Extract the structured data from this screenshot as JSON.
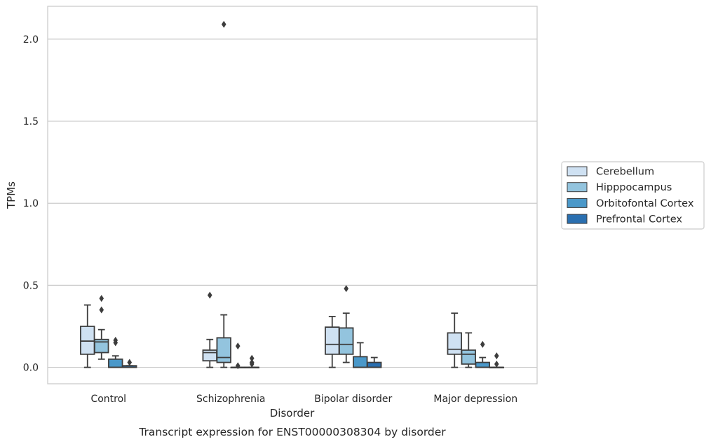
{
  "chart_data": {
    "type": "box",
    "caption": "Transcript expression for ENST00000308304 by disorder",
    "xlabel": "Disorder",
    "ylabel": "TPMs",
    "ylim": [
      -0.1,
      2.2
    ],
    "yticks": [
      "0.0",
      "0.5",
      "1.0",
      "1.5",
      "2.0"
    ],
    "ytick_values": [
      0.0,
      0.5,
      1.0,
      1.5,
      2.0
    ],
    "grid": "horizontal",
    "legend_position": "right",
    "categories": [
      "Control",
      "Schizophrenia",
      "Bipolar disorder",
      "Major depression"
    ],
    "series": [
      {
        "name": "Cerebellum",
        "color": "#cfe1f2",
        "boxes": [
          {
            "whisker_low": 0.0,
            "q1": 0.08,
            "median": 0.16,
            "q3": 0.25,
            "whisker_high": 0.38,
            "outliers": []
          },
          {
            "whisker_low": 0.0,
            "q1": 0.04,
            "median": 0.09,
            "q3": 0.105,
            "whisker_high": 0.17,
            "outliers": [
              0.44
            ]
          },
          {
            "whisker_low": 0.0,
            "q1": 0.08,
            "median": 0.14,
            "q3": 0.245,
            "whisker_high": 0.31,
            "outliers": []
          },
          {
            "whisker_low": 0.0,
            "q1": 0.08,
            "median": 0.11,
            "q3": 0.21,
            "whisker_high": 0.33,
            "outliers": []
          }
        ]
      },
      {
        "name": "Hipppocampus",
        "color": "#93c4de",
        "boxes": [
          {
            "whisker_low": 0.05,
            "q1": 0.09,
            "median": 0.155,
            "q3": 0.17,
            "whisker_high": 0.23,
            "outliers": [
              0.35,
              0.42
            ]
          },
          {
            "whisker_low": 0.0,
            "q1": 0.03,
            "median": 0.06,
            "q3": 0.18,
            "whisker_high": 0.32,
            "outliers": [
              2.09
            ]
          },
          {
            "whisker_low": 0.03,
            "q1": 0.08,
            "median": 0.14,
            "q3": 0.24,
            "whisker_high": 0.33,
            "outliers": [
              0.48
            ]
          },
          {
            "whisker_low": 0.0,
            "q1": 0.02,
            "median": 0.08,
            "q3": 0.105,
            "whisker_high": 0.21,
            "outliers": []
          }
        ]
      },
      {
        "name": "Orbitofontal Cortex",
        "color": "#4a98c9",
        "boxes": [
          {
            "whisker_low": 0.0,
            "q1": 0.0,
            "median": 0.0,
            "q3": 0.05,
            "whisker_high": 0.07,
            "outliers": [
              0.15,
              0.165
            ]
          },
          {
            "whisker_low": 0.0,
            "q1": 0.0,
            "median": 0.0,
            "q3": 0.0,
            "whisker_high": 0.0,
            "outliers": [
              0.01,
              0.13
            ]
          },
          {
            "whisker_low": 0.0,
            "q1": 0.0,
            "median": 0.0,
            "q3": 0.065,
            "whisker_high": 0.15,
            "outliers": []
          },
          {
            "whisker_low": 0.0,
            "q1": 0.0,
            "median": 0.0,
            "q3": 0.03,
            "whisker_high": 0.06,
            "outliers": [
              0.14
            ]
          }
        ]
      },
      {
        "name": "Prefrontal Cortex",
        "color": "#2a6fb0",
        "boxes": [
          {
            "whisker_low": 0.0,
            "q1": 0.0,
            "median": 0.0,
            "q3": 0.01,
            "whisker_high": 0.01,
            "outliers": [
              0.03
            ]
          },
          {
            "whisker_low": 0.0,
            "q1": 0.0,
            "median": 0.0,
            "q3": 0.0,
            "whisker_high": 0.0,
            "outliers": [
              0.02,
              0.03,
              0.055
            ]
          },
          {
            "whisker_low": 0.0,
            "q1": 0.0,
            "median": 0.0,
            "q3": 0.03,
            "whisker_high": 0.06,
            "outliers": []
          },
          {
            "whisker_low": 0.0,
            "q1": 0.0,
            "median": 0.0,
            "q3": 0.0,
            "whisker_high": 0.0,
            "outliers": [
              0.02,
              0.07
            ]
          }
        ]
      }
    ]
  }
}
